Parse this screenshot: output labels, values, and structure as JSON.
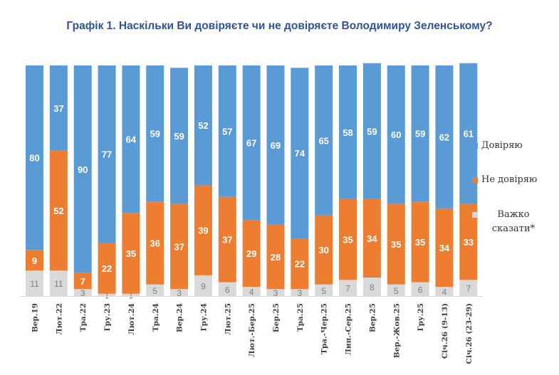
{
  "chart_data": {
    "type": "bar",
    "stacked": true,
    "title": "Графік 1. Наскільки Ви довіряєте чи не довіряєте Володимиру Зеленському?",
    "categories": [
      "Вер.19",
      "Лют.22",
      "Тра.22",
      "Гру.23",
      "Лют.24",
      "Тра.24",
      "Вер.24",
      "Гру.24",
      "Лют.25",
      "Лют.-Бер.25",
      "Бер.25",
      "Тра.25",
      "Тра.-Чер.25",
      "Лип.-Сер.25",
      "Вер.25",
      "Вер.-Жов.25",
      "Гру.25",
      "Січ.26 (9-13)",
      "Січ.26 (23-29)"
    ],
    "series": [
      {
        "name": "Важко сказати*",
        "color": "#d9d9d9",
        "label_color": "#7f7f7f",
        "values": [
          11,
          11,
          3,
          1,
          1,
          5,
          3,
          9,
          6,
          4,
          3,
          3,
          5,
          7,
          8,
          5,
          6,
          4,
          7
        ]
      },
      {
        "name": "Не довіряю",
        "color": "#ed7d31",
        "label_color": "#ffffff",
        "values": [
          9,
          52,
          7,
          22,
          35,
          36,
          37,
          39,
          37,
          29,
          28,
          22,
          30,
          35,
          34,
          35,
          35,
          34,
          33
        ]
      },
      {
        "name": "Довіряю",
        "color": "#5b9bd5",
        "label_color": "#ffffff",
        "values": [
          80,
          37,
          90,
          77,
          64,
          59,
          59,
          52,
          57,
          67,
          69,
          74,
          65,
          58,
          59,
          60,
          59,
          62,
          61
        ]
      }
    ],
    "ylim": [
      0,
      100
    ],
    "grid": false,
    "legend_position": "right"
  },
  "legend": [
    {
      "label": "Довіряю",
      "color": "#5b9bd5"
    },
    {
      "label": "Не довіряю",
      "color": "#ed7d31"
    },
    {
      "label": "Важко сказати*",
      "color": "#d9d9d9"
    }
  ]
}
